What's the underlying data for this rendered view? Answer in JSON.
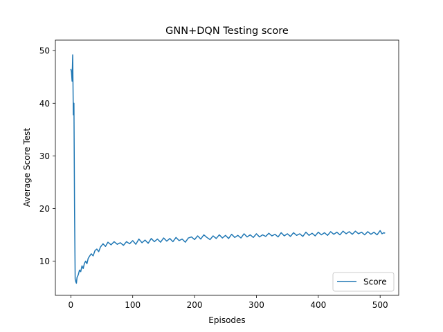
{
  "chart_data": {
    "type": "line",
    "title": "GNN+DQN Testing score",
    "xlabel": "Episodes",
    "ylabel": "Average Score Test",
    "xlim": [
      -25,
      530
    ],
    "ylim": [
      3.5,
      52
    ],
    "xticks": [
      0,
      100,
      200,
      300,
      400,
      500
    ],
    "yticks": [
      10,
      20,
      30,
      40,
      50
    ],
    "grid": false,
    "legend_position": "lower right",
    "series": [
      {
        "name": "Score",
        "color": "#1f77b4",
        "points": [
          [
            0,
            46.5
          ],
          [
            1,
            46.0
          ],
          [
            2,
            44.2
          ],
          [
            3,
            49.2
          ],
          [
            4,
            37.8
          ],
          [
            5,
            40.0
          ],
          [
            6,
            20.0
          ],
          [
            7,
            6.6
          ],
          [
            8,
            6.1
          ],
          [
            9,
            5.8
          ],
          [
            10,
            6.9
          ],
          [
            12,
            7.4
          ],
          [
            14,
            8.3
          ],
          [
            16,
            8.0
          ],
          [
            18,
            9.1
          ],
          [
            20,
            8.6
          ],
          [
            22,
            9.6
          ],
          [
            24,
            10.0
          ],
          [
            26,
            9.5
          ],
          [
            28,
            10.5
          ],
          [
            30,
            10.9
          ],
          [
            33,
            11.4
          ],
          [
            36,
            11.0
          ],
          [
            39,
            12.0
          ],
          [
            42,
            12.3
          ],
          [
            45,
            11.8
          ],
          [
            48,
            12.7
          ],
          [
            52,
            13.3
          ],
          [
            56,
            12.8
          ],
          [
            60,
            13.6
          ],
          [
            65,
            13.1
          ],
          [
            70,
            13.7
          ],
          [
            75,
            13.2
          ],
          [
            80,
            13.5
          ],
          [
            85,
            13.0
          ],
          [
            90,
            13.7
          ],
          [
            95,
            13.3
          ],
          [
            100,
            13.9
          ],
          [
            105,
            13.2
          ],
          [
            110,
            14.2
          ],
          [
            115,
            13.5
          ],
          [
            120,
            14.0
          ],
          [
            125,
            13.4
          ],
          [
            130,
            14.3
          ],
          [
            135,
            13.7
          ],
          [
            140,
            14.2
          ],
          [
            145,
            13.6
          ],
          [
            150,
            14.4
          ],
          [
            155,
            13.8
          ],
          [
            160,
            14.3
          ],
          [
            165,
            13.7
          ],
          [
            170,
            14.5
          ],
          [
            175,
            13.9
          ],
          [
            180,
            14.2
          ],
          [
            185,
            13.6
          ],
          [
            190,
            14.4
          ],
          [
            195,
            14.6
          ],
          [
            200,
            14.1
          ],
          [
            205,
            14.8
          ],
          [
            210,
            14.2
          ],
          [
            215,
            15.0
          ],
          [
            220,
            14.5
          ],
          [
            225,
            14.1
          ],
          [
            230,
            14.8
          ],
          [
            235,
            14.3
          ],
          [
            240,
            15.0
          ],
          [
            245,
            14.4
          ],
          [
            250,
            14.9
          ],
          [
            255,
            14.3
          ],
          [
            260,
            15.1
          ],
          [
            265,
            14.5
          ],
          [
            270,
            14.9
          ],
          [
            275,
            14.4
          ],
          [
            280,
            15.2
          ],
          [
            285,
            14.6
          ],
          [
            290,
            15.0
          ],
          [
            295,
            14.5
          ],
          [
            300,
            15.2
          ],
          [
            305,
            14.6
          ],
          [
            310,
            15.0
          ],
          [
            315,
            14.7
          ],
          [
            320,
            15.3
          ],
          [
            325,
            14.8
          ],
          [
            330,
            15.1
          ],
          [
            335,
            14.6
          ],
          [
            340,
            15.4
          ],
          [
            345,
            14.8
          ],
          [
            350,
            15.2
          ],
          [
            355,
            14.7
          ],
          [
            360,
            15.4
          ],
          [
            365,
            14.9
          ],
          [
            370,
            15.2
          ],
          [
            375,
            14.7
          ],
          [
            380,
            15.5
          ],
          [
            385,
            14.9
          ],
          [
            390,
            15.3
          ],
          [
            395,
            14.8
          ],
          [
            400,
            15.5
          ],
          [
            405,
            15.0
          ],
          [
            410,
            15.4
          ],
          [
            415,
            14.9
          ],
          [
            420,
            15.6
          ],
          [
            425,
            15.1
          ],
          [
            430,
            15.5
          ],
          [
            435,
            15.0
          ],
          [
            440,
            15.7
          ],
          [
            445,
            15.2
          ],
          [
            450,
            15.6
          ],
          [
            455,
            15.1
          ],
          [
            460,
            15.7
          ],
          [
            465,
            15.2
          ],
          [
            470,
            15.5
          ],
          [
            475,
            15.0
          ],
          [
            480,
            15.6
          ],
          [
            485,
            15.1
          ],
          [
            490,
            15.5
          ],
          [
            495,
            15.0
          ],
          [
            500,
            15.8
          ],
          [
            503,
            15.2
          ],
          [
            506,
            15.4
          ],
          [
            508,
            15.3
          ]
        ]
      }
    ]
  }
}
